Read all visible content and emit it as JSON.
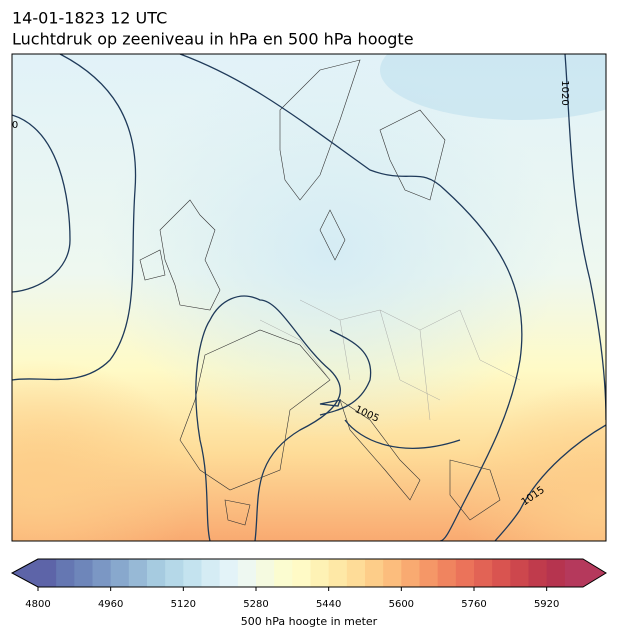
{
  "title": "14-01-1823 12 UTC",
  "subtitle": "Luchtdruk op zeeniveau in hPa en 500 hPa hoogte",
  "contour_labels": [
    "1020",
    "1015",
    "1005",
    "0"
  ],
  "colorbar": {
    "label": "500 hPa hoogte in meter",
    "range": [
      4800,
      6000
    ],
    "ticks": [
      4800,
      4960,
      5120,
      5280,
      5440,
      5600,
      5760,
      5920
    ],
    "colors": [
      "#5d64a8",
      "#6577b2",
      "#6e86ba",
      "#7b97c4",
      "#88a8cd",
      "#97b9d6",
      "#a6cbe0",
      "#b5d8e8",
      "#c4e3ef",
      "#d5ecf4",
      "#e3f3f8",
      "#eef8f1",
      "#f5fae0",
      "#fbfcd0",
      "#fffac6",
      "#fef2b5",
      "#fee8a6",
      "#fedc98",
      "#fdcd89",
      "#fcbd7d",
      "#f9aa71",
      "#f59767",
      "#f0845f",
      "#eb735a",
      "#e26355",
      "#d95450",
      "#cd474d",
      "#c03b4c",
      "#b6344f",
      "#b5395c"
    ]
  }
}
